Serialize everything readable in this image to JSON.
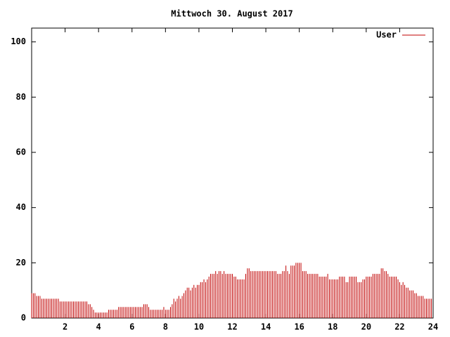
{
  "chart_data": {
    "type": "impulse",
    "title": "Mittwoch 30. August 2017",
    "xlim": [
      0,
      24
    ],
    "xticks": [
      2,
      4,
      6,
      8,
      10,
      12,
      14,
      16,
      18,
      20,
      22,
      24
    ],
    "ylim": [
      0,
      105
    ],
    "yticks": [
      0,
      20,
      40,
      60,
      80,
      100
    ],
    "legend": "top-right",
    "x": [
      0,
      0.1,
      0.2,
      0.3,
      0.4,
      0.5,
      0.6,
      0.7,
      0.8,
      0.9,
      1,
      1.1,
      1.2,
      1.3,
      1.4,
      1.5,
      1.6,
      1.7,
      1.8,
      1.9,
      2,
      2.1,
      2.2,
      2.3,
      2.4,
      2.5,
      2.6,
      2.7,
      2.8,
      2.9,
      3,
      3.1,
      3.2,
      3.3,
      3.4,
      3.5,
      3.6,
      3.7,
      3.8,
      3.9,
      4,
      4.1,
      4.2,
      4.3,
      4.4,
      4.5,
      4.6,
      4.7,
      4.8,
      4.9,
      5,
      5.1,
      5.2,
      5.3,
      5.4,
      5.5,
      5.6,
      5.7,
      5.8,
      5.9,
      6,
      6.1,
      6.2,
      6.3,
      6.4,
      6.5,
      6.6,
      6.7,
      6.8,
      6.9,
      7,
      7.1,
      7.2,
      7.3,
      7.4,
      7.5,
      7.6,
      7.7,
      7.8,
      7.9,
      8,
      8.1,
      8.2,
      8.3,
      8.4,
      8.5,
      8.6,
      8.7,
      8.8,
      8.9,
      9,
      9.1,
      9.2,
      9.3,
      9.4,
      9.5,
      9.6,
      9.7,
      9.8,
      9.9,
      10,
      10.1,
      10.2,
      10.3,
      10.4,
      10.5,
      10.6,
      10.7,
      10.8,
      10.9,
      11,
      11.1,
      11.2,
      11.3,
      11.4,
      11.5,
      11.6,
      11.7,
      11.8,
      11.9,
      12,
      12.1,
      12.2,
      12.3,
      12.4,
      12.5,
      12.6,
      12.7,
      12.8,
      12.9,
      13,
      13.1,
      13.2,
      13.3,
      13.4,
      13.5,
      13.6,
      13.7,
      13.8,
      13.9,
      14,
      14.1,
      14.2,
      14.3,
      14.4,
      14.5,
      14.6,
      14.7,
      14.8,
      14.9,
      15,
      15.1,
      15.2,
      15.3,
      15.4,
      15.5,
      15.6,
      15.7,
      15.8,
      15.9,
      16,
      16.1,
      16.2,
      16.3,
      16.4,
      16.5,
      16.6,
      16.7,
      16.8,
      16.9,
      17,
      17.1,
      17.2,
      17.3,
      17.4,
      17.5,
      17.6,
      17.7,
      17.8,
      17.9,
      18,
      18.1,
      18.2,
      18.3,
      18.4,
      18.5,
      18.6,
      18.7,
      18.8,
      18.9,
      19,
      19.1,
      19.2,
      19.3,
      19.4,
      19.5,
      19.6,
      19.7,
      19.8,
      19.9,
      20,
      20.1,
      20.2,
      20.3,
      20.4,
      20.5,
      20.6,
      20.7,
      20.8,
      20.9,
      21,
      21.1,
      21.2,
      21.3,
      21.4,
      21.5,
      21.6,
      21.7,
      21.8,
      21.9,
      22,
      22.1,
      22.2,
      22.3,
      22.4,
      22.5,
      22.6,
      22.7,
      22.8,
      22.9,
      23,
      23.1,
      23.2,
      23.3,
      23.4,
      23.5,
      23.6,
      23.7,
      23.8,
      23.9
    ],
    "series": [
      {
        "name": "User",
        "color": "#c00000",
        "values": [
          9,
          9,
          9,
          8,
          8,
          8,
          7,
          7,
          7,
          7,
          7,
          7,
          7,
          7,
          7,
          7,
          7,
          6,
          6,
          6,
          6,
          6,
          6,
          6,
          6,
          6,
          6,
          6,
          6,
          6,
          6,
          6,
          6,
          6,
          5,
          5,
          4,
          3,
          2,
          2,
          2,
          2,
          2,
          2,
          2,
          2,
          3,
          3,
          3,
          3,
          3,
          3,
          4,
          4,
          4,
          4,
          4,
          4,
          4,
          4,
          4,
          4,
          4,
          4,
          4,
          4,
          4,
          5,
          5,
          5,
          4,
          3,
          3,
          3,
          3,
          3,
          3,
          3,
          3,
          4,
          3,
          3,
          3,
          4,
          5,
          7,
          6,
          7,
          8,
          7,
          8,
          9,
          10,
          11,
          11,
          10,
          11,
          12,
          11,
          12,
          12,
          13,
          13,
          14,
          13,
          14,
          15,
          16,
          16,
          16,
          17,
          16,
          17,
          17,
          16,
          17,
          16,
          16,
          16,
          16,
          16,
          15,
          15,
          14,
          14,
          14,
          14,
          14,
          16,
          18,
          18,
          17,
          17,
          17,
          17,
          17,
          17,
          17,
          17,
          17,
          17,
          17,
          17,
          17,
          17,
          17,
          17,
          16,
          16,
          16,
          17,
          17,
          19,
          17,
          16,
          19,
          19,
          19,
          20,
          20,
          20,
          20,
          17,
          17,
          17,
          16,
          16,
          16,
          16,
          16,
          16,
          16,
          15,
          15,
          15,
          15,
          15,
          16,
          14,
          14,
          14,
          14,
          14,
          14,
          15,
          15,
          15,
          15,
          13,
          13,
          15,
          15,
          15,
          15,
          15,
          13,
          13,
          13,
          14,
          14,
          15,
          15,
          15,
          15,
          16,
          16,
          16,
          16,
          16,
          18,
          18,
          17,
          17,
          16,
          15,
          15,
          15,
          15,
          15,
          14,
          13,
          12,
          13,
          12,
          11,
          11,
          10,
          10,
          10,
          9,
          9,
          8,
          8,
          8,
          8,
          7,
          7,
          7,
          7,
          7
        ]
      }
    ]
  }
}
